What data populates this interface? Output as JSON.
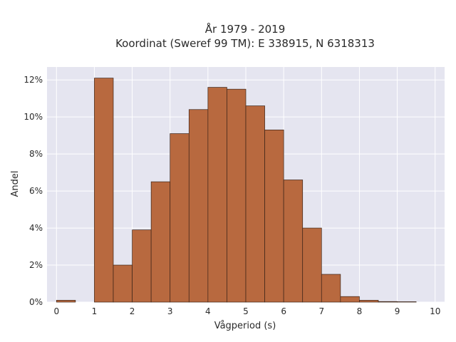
{
  "chart_data": {
    "type": "bar",
    "title_line1": "År 1979 - 2019",
    "title_line2": "Koordinat (Sweref 99 TM): E 338915, N 6318313",
    "xlabel": "Vågperiod (s)",
    "ylabel": "Andel",
    "xlim": [
      -0.25,
      10.25
    ],
    "ylim": [
      0,
      12.7
    ],
    "x_ticks": [
      0,
      1,
      2,
      3,
      4,
      5,
      6,
      7,
      8,
      9,
      10
    ],
    "y_ticks": [
      0,
      2,
      4,
      6,
      8,
      10,
      12
    ],
    "y_tick_labels": [
      "0%",
      "2%",
      "4%",
      "6%",
      "8%",
      "10%",
      "12%"
    ],
    "grid": true,
    "bin_width": 0.5,
    "bins": [
      {
        "x0": 0.0,
        "value": 0.1
      },
      {
        "x0": 0.5,
        "value": 0.0
      },
      {
        "x0": 1.0,
        "value": 12.1
      },
      {
        "x0": 1.5,
        "value": 2.0
      },
      {
        "x0": 2.0,
        "value": 3.9
      },
      {
        "x0": 2.5,
        "value": 6.5
      },
      {
        "x0": 3.0,
        "value": 9.1
      },
      {
        "x0": 3.5,
        "value": 10.4
      },
      {
        "x0": 4.0,
        "value": 11.6
      },
      {
        "x0": 4.5,
        "value": 11.5
      },
      {
        "x0": 5.0,
        "value": 10.6
      },
      {
        "x0": 5.5,
        "value": 9.3
      },
      {
        "x0": 6.0,
        "value": 6.6
      },
      {
        "x0": 6.5,
        "value": 4.0
      },
      {
        "x0": 7.0,
        "value": 1.5
      },
      {
        "x0": 7.5,
        "value": 0.3
      },
      {
        "x0": 8.0,
        "value": 0.1
      },
      {
        "x0": 8.5,
        "value": 0.03
      },
      {
        "x0": 9.0,
        "value": 0.02
      }
    ],
    "colors": {
      "bar_fill": "#b8693f",
      "bar_stroke": "#3a2418",
      "plot_bg": "#e5e5f0",
      "grid": "#ffffff"
    }
  }
}
